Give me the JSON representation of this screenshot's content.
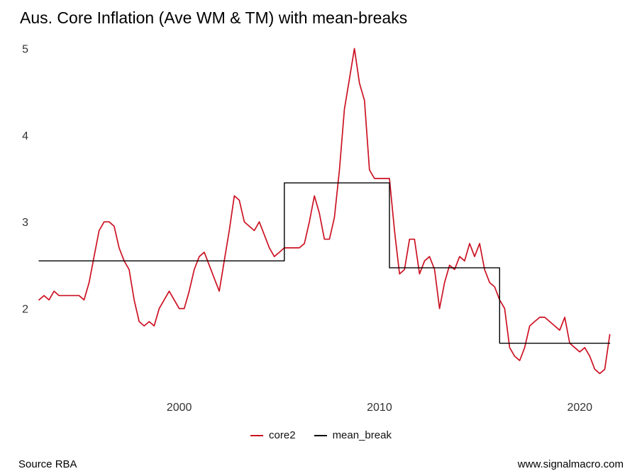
{
  "page": {
    "source_note": "Source RBA",
    "website": "www.signalmacro.com"
  },
  "chart_data": {
    "type": "line",
    "title": "Aus. Core Inflation (Ave WM & TM) with mean-breaks",
    "xlabel": "",
    "ylabel": "",
    "xlim": [
      1993,
      2022.4
    ],
    "ylim": [
      1.0,
      5.11
    ],
    "x_ticks": [
      2000,
      2010,
      2020
    ],
    "y_ticks": [
      2,
      3,
      4,
      5
    ],
    "grid": false,
    "legend_position": "bottom",
    "series": [
      {
        "name": "core2",
        "color": "#cc1122",
        "width": 1.7,
        "x_start": 1993.0,
        "x_step": 0.25,
        "x_end": 2021.5,
        "y": [
          2.1,
          2.15,
          2.1,
          2.2,
          2.15,
          2.15,
          2.15,
          2.15,
          2.15,
          2.1,
          2.3,
          2.6,
          2.9,
          3.0,
          3.0,
          2.95,
          2.7,
          2.55,
          2.45,
          2.1,
          1.85,
          1.8,
          1.85,
          1.8,
          2.0,
          2.1,
          2.2,
          2.1,
          2.0,
          2.0,
          2.2,
          2.45,
          2.6,
          2.65,
          2.5,
          2.35,
          2.2,
          2.55,
          2.9,
          3.3,
          3.25,
          3.0,
          2.95,
          2.9,
          3.0,
          2.85,
          2.7,
          2.6,
          2.65,
          2.7,
          2.7,
          2.7,
          2.7,
          2.75,
          3.0,
          3.3,
          3.1,
          2.8,
          2.8,
          3.05,
          3.6,
          4.3,
          4.65,
          5.0,
          4.6,
          4.4,
          3.6,
          3.5,
          3.5,
          3.5,
          3.5,
          2.9,
          2.4,
          2.45,
          2.8,
          2.8,
          2.4,
          2.55,
          2.6,
          2.45,
          2.0,
          2.3,
          2.5,
          2.45,
          2.6,
          2.55,
          2.75,
          2.6,
          2.75,
          2.45,
          2.3,
          2.25,
          2.1,
          2.0,
          1.55,
          1.45,
          1.4,
          1.55,
          1.8,
          1.85,
          1.9,
          1.9,
          1.85,
          1.8,
          1.75,
          1.9,
          1.6,
          1.55,
          1.5,
          1.55,
          1.45,
          1.3,
          1.25,
          1.3,
          1.7
        ]
      },
      {
        "name": "mean_break",
        "color": "#000000",
        "width": 1.4,
        "x": [
          1993.0,
          2005.25,
          2005.25,
          2010.5,
          2010.5,
          2016.0,
          2016.0,
          2021.5
        ],
        "y": [
          2.55,
          2.55,
          3.45,
          3.45,
          2.47,
          2.47,
          1.6,
          1.6
        ]
      }
    ]
  }
}
